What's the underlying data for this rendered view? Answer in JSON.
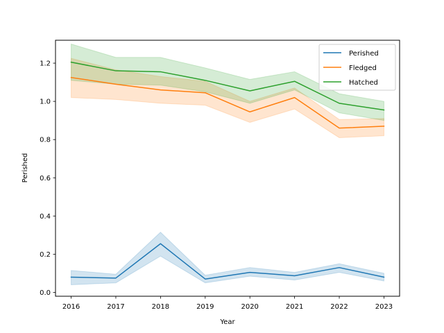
{
  "chart_data": {
    "type": "line",
    "xlabel": "Year",
    "ylabel": "Perished",
    "x": [
      2016,
      2017,
      2018,
      2019,
      2020,
      2021,
      2022,
      2023
    ],
    "xlim": [
      2015.65,
      2023.35
    ],
    "ylim": [
      -0.02,
      1.32
    ],
    "yticks": [
      0.0,
      0.2,
      0.4,
      0.6,
      0.8,
      1.0,
      1.2
    ],
    "ytick_labels": [
      "0.0",
      "0.2",
      "0.4",
      "0.6",
      "0.8",
      "1.0",
      "1.2"
    ],
    "xtick_labels": [
      "2016",
      "2017",
      "2018",
      "2019",
      "2020",
      "2021",
      "2022",
      "2023"
    ],
    "grid": false,
    "legend_position": "top-right",
    "series": [
      {
        "name": "Perished",
        "color": "#1f77b4",
        "values": [
          0.08,
          0.075,
          0.255,
          0.07,
          0.105,
          0.087,
          0.13,
          0.08
        ],
        "lower": [
          0.04,
          0.05,
          0.19,
          0.05,
          0.085,
          0.065,
          0.105,
          0.06
        ],
        "upper": [
          0.115,
          0.095,
          0.315,
          0.09,
          0.13,
          0.105,
          0.15,
          0.1
        ]
      },
      {
        "name": "Fledged",
        "color": "#ff7f0e",
        "values": [
          1.125,
          1.09,
          1.06,
          1.045,
          0.945,
          1.02,
          0.86,
          0.87
        ],
        "lower": [
          1.02,
          1.01,
          0.99,
          0.98,
          0.89,
          0.96,
          0.81,
          0.82
        ],
        "upper": [
          1.225,
          1.165,
          1.13,
          1.105,
          1.0,
          1.07,
          0.905,
          0.91
        ]
      },
      {
        "name": "Hatched",
        "color": "#2ca02c",
        "values": [
          1.205,
          1.16,
          1.155,
          1.11,
          1.055,
          1.105,
          0.99,
          0.955
        ],
        "lower": [
          1.11,
          1.09,
          1.085,
          1.05,
          0.99,
          1.06,
          0.94,
          0.9
        ],
        "upper": [
          1.3,
          1.23,
          1.23,
          1.175,
          1.115,
          1.155,
          1.04,
          1.0
        ]
      }
    ]
  }
}
